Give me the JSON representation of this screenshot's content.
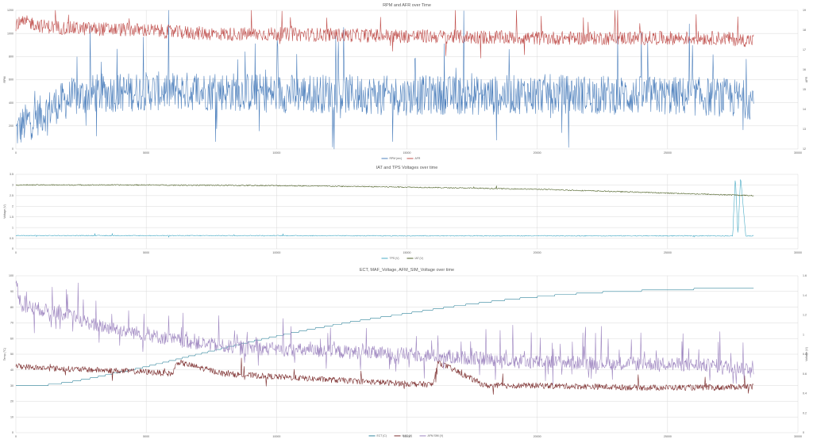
{
  "chart_data": [
    {
      "type": "line",
      "title": "RPM and AFR over Time",
      "ylabel": "RPM",
      "y2label": "AFR",
      "xlim": [
        0,
        30000
      ],
      "ylim": [
        0,
        1200
      ],
      "y2lim": [
        12,
        19
      ],
      "x_ticks": [
        "0",
        "5000",
        "10000",
        "15000",
        "20000",
        "25000",
        "30000"
      ],
      "y_ticks": [
        "0",
        "200",
        "400",
        "600",
        "800",
        "1000",
        "1200"
      ],
      "y2_ticks": [
        "12",
        "13",
        "14",
        "15",
        "16",
        "17",
        "18",
        "19"
      ],
      "colors": {
        "RPM (rev)": "#4f81bd",
        "AFR": "#c0504d"
      },
      "series": [
        {
          "name": "RPM (rev)",
          "axis": "left",
          "x": [
            0,
            500,
            1000,
            1500,
            2000,
            3000,
            5000,
            6000,
            8000,
            10000,
            12000,
            15000,
            16000,
            18000,
            20000,
            22000,
            25000,
            27000,
            28000,
            28300
          ],
          "values": [
            150,
            250,
            300,
            380,
            430,
            480,
            500,
            500,
            500,
            480,
            480,
            460,
            470,
            460,
            480,
            470,
            460,
            450,
            430,
            420
          ]
        },
        {
          "name": "AFR",
          "axis": "right",
          "x": [
            0,
            500,
            1000,
            2000,
            5000,
            6000,
            8000,
            10000,
            15000,
            20000,
            25000,
            27000,
            28000,
            28300
          ],
          "values": [
            18.3,
            18.4,
            18.2,
            18.1,
            18.0,
            17.9,
            17.8,
            17.8,
            17.7,
            17.6,
            17.6,
            17.6,
            17.5,
            17.5
          ]
        }
      ],
      "legend": "bottom"
    },
    {
      "type": "line",
      "title": "IAT and TPS Voltages over time",
      "ylabel": "Voltage (V)",
      "xlim": [
        0,
        30000
      ],
      "ylim": [
        0,
        3.5
      ],
      "x_ticks": [
        "0",
        "5000",
        "10000",
        "15000",
        "20000",
        "25000",
        "30000"
      ],
      "y_ticks": [
        "0",
        "0.5",
        "1",
        "1.5",
        "2",
        "2.5",
        "3",
        "3.5"
      ],
      "colors": {
        "TPS (V)": "#4bacc6",
        "IAT (V)": "#4f6228"
      },
      "series": [
        {
          "name": "TPS (V)",
          "x": [
            0,
            5000,
            10000,
            15000,
            20000,
            25000,
            27500,
            27600,
            27700,
            27800,
            28000,
            28300
          ],
          "values": [
            0.62,
            0.62,
            0.62,
            0.61,
            0.61,
            0.61,
            0.61,
            3.4,
            0.61,
            3.4,
            0.61,
            0.61
          ]
        },
        {
          "name": "IAT (V)",
          "x": [
            0,
            5000,
            10000,
            15000,
            20000,
            25000,
            28300
          ],
          "values": [
            3.0,
            3.0,
            2.97,
            2.9,
            2.8,
            2.62,
            2.5
          ]
        }
      ],
      "legend": "bottom"
    },
    {
      "type": "line",
      "title": "ECT, MAF_Voltage, AFM_SIM_Voltage over time",
      "ylabel": "Temp (°C)",
      "y2label": "Voltage (V)",
      "xlim": [
        0,
        30000
      ],
      "ylim": [
        0,
        100
      ],
      "y2lim": [
        0,
        1.6
      ],
      "x_ticks": [
        "0",
        "5000",
        "10000",
        "15000",
        "20000",
        "25000",
        "30000"
      ],
      "y_ticks": [
        "0",
        "10",
        "20",
        "30",
        "40",
        "50",
        "60",
        "70",
        "80",
        "90",
        "100"
      ],
      "y2_ticks": [
        "0",
        "0.2",
        "0.4",
        "0.6",
        "0.8",
        "1",
        "1.2",
        "1.4",
        "1.6"
      ],
      "colors": {
        "ECT (C)": "#31859c",
        "MAF (V)": "#7b2c2c",
        "AFM SIM (V)": "#9e86c0"
      },
      "series": [
        {
          "name": "ECT (C)",
          "axis": "left",
          "x": [
            0,
            1000,
            2000,
            3000,
            5000,
            7000,
            9000,
            11000,
            13000,
            15000,
            17000,
            19000,
            21000,
            23000,
            25000,
            27000,
            28300
          ],
          "values": [
            30,
            30,
            32,
            35,
            42,
            50,
            58,
            65,
            71,
            76,
            81,
            85,
            88,
            90,
            91,
            92,
            92
          ]
        },
        {
          "name": "MAF (V)",
          "axis": "right",
          "x": [
            0,
            1000,
            3000,
            5000,
            6000,
            6200,
            8000,
            10000,
            12000,
            15000,
            16000,
            16200,
            18000,
            20000,
            22000,
            24000,
            26000,
            27000,
            28000,
            28300
          ],
          "values": [
            0.68,
            0.66,
            0.64,
            0.62,
            0.6,
            0.72,
            0.6,
            0.57,
            0.54,
            0.5,
            0.49,
            0.72,
            0.48,
            0.48,
            0.47,
            0.46,
            0.46,
            0.46,
            0.47,
            0.47
          ]
        },
        {
          "name": "AFM SIM (V)",
          "axis": "right",
          "x": [
            0,
            200,
            2000,
            3000,
            5000,
            6000,
            8000,
            10000,
            15000,
            20000,
            25000,
            27000,
            28000,
            28300
          ],
          "values": [
            1.55,
            1.3,
            1.2,
            1.1,
            1.0,
            0.95,
            0.88,
            0.85,
            0.8,
            0.72,
            0.7,
            0.68,
            0.66,
            0.66
          ]
        }
      ],
      "legend": "bottom"
    }
  ]
}
